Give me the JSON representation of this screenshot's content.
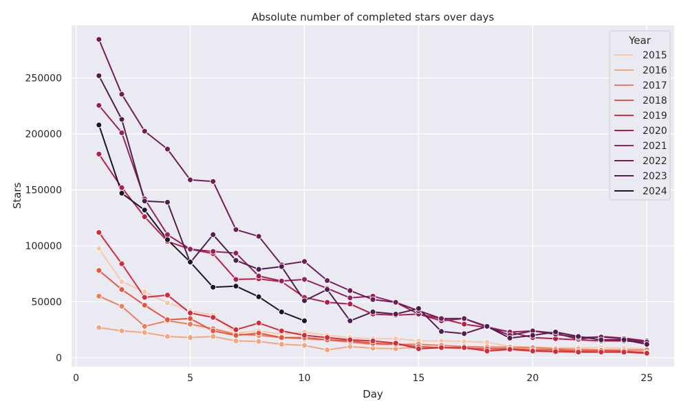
{
  "chart_data": {
    "type": "line",
    "title": "Absolute number of completed stars over days",
    "xlabel": "Day",
    "ylabel": "Stars",
    "xlim": [
      -0.2,
      26.2
    ],
    "ylim": [
      -8000,
      297000
    ],
    "xticks": [
      0,
      5,
      10,
      15,
      20,
      25
    ],
    "yticks": [
      0,
      50000,
      100000,
      150000,
      200000,
      250000
    ],
    "grid": true,
    "legend": {
      "title": "Year",
      "position": "top-right"
    },
    "series": [
      {
        "name": "2015",
        "color": "#f9c8a6",
        "x": [
          1,
          2,
          3,
          4,
          5,
          6,
          7,
          8,
          9,
          10,
          11,
          12,
          13,
          14,
          15,
          16,
          17,
          18,
          19,
          20,
          21,
          22,
          23,
          24,
          25
        ],
        "values": [
          97500,
          68000,
          59000,
          49000,
          42000,
          38000,
          22000,
          24000,
          21000,
          23000,
          20000,
          18000,
          17000,
          17000,
          15000,
          15000,
          14500,
          14000,
          10000,
          9500,
          9000,
          9000,
          9000,
          8500,
          8000
        ]
      },
      {
        "name": "2016",
        "color": "#f5a57e",
        "x": [
          1,
          2,
          3,
          4,
          5,
          6,
          7,
          8,
          9,
          10,
          11,
          12,
          13,
          14,
          15,
          16,
          17,
          18,
          19,
          20,
          21,
          22,
          23,
          24,
          25
        ],
        "values": [
          27000,
          24000,
          22500,
          19000,
          18000,
          19000,
          15000,
          14500,
          12000,
          11000,
          7000,
          10000,
          8500,
          8000,
          10000,
          9000,
          8000,
          7500,
          8000,
          7500,
          7000,
          6000,
          5500,
          5500,
          5000
        ]
      },
      {
        "name": "2017",
        "color": "#ef7d5c",
        "x": [
          1,
          2,
          3,
          4,
          5,
          6,
          7,
          8,
          9,
          10,
          11,
          12,
          13,
          14,
          15,
          16,
          17,
          18,
          19,
          20,
          21,
          22,
          23,
          24,
          25
        ],
        "values": [
          55000,
          46000,
          28000,
          33000,
          30000,
          26000,
          21000,
          20000,
          18000,
          17000,
          16000,
          14000,
          12000,
          12000,
          12000,
          11000,
          10000,
          9500,
          9500,
          9000,
          8000,
          7500,
          7000,
          7000,
          7000
        ]
      },
      {
        "name": "2018",
        "color": "#e8553f",
        "x": [
          1,
          2,
          3,
          4,
          5,
          6,
          7,
          8,
          9,
          10,
          11,
          12,
          13,
          14,
          15,
          16,
          17,
          18,
          19,
          20,
          21,
          22,
          23,
          24,
          25
        ],
        "values": [
          78000,
          61000,
          47000,
          34000,
          35000,
          24000,
          20000,
          22000,
          18000,
          18000,
          16000,
          15000,
          13000,
          12000,
          10000,
          9000,
          8500,
          8000,
          8000,
          7000,
          7000,
          6000,
          6500,
          6000,
          4500
        ]
      },
      {
        "name": "2019",
        "color": "#d52a3b",
        "x": [
          1,
          2,
          3,
          4,
          5,
          6,
          7,
          8,
          9,
          10,
          11,
          12,
          13,
          14,
          15,
          16,
          17,
          18,
          19,
          20,
          21,
          22,
          23,
          24,
          25
        ],
        "values": [
          112000,
          84000,
          54000,
          56000,
          40000,
          36000,
          25000,
          31000,
          24000,
          20000,
          18000,
          16000,
          15000,
          13000,
          8000,
          9000,
          9000,
          6000,
          7500,
          6000,
          5500,
          5000,
          5000,
          5000,
          4000
        ]
      },
      {
        "name": "2020",
        "color": "#b71d47",
        "x": [
          1,
          2,
          3,
          4,
          5,
          6,
          7,
          8,
          9,
          10,
          11,
          12,
          13,
          14,
          15,
          16,
          17,
          18,
          19,
          20,
          21,
          22,
          23,
          24,
          25
        ],
        "values": [
          182000,
          152000,
          126000,
          104000,
          97000,
          93000,
          70000,
          70500,
          68000,
          54000,
          49500,
          48000,
          39000,
          38000,
          39000,
          35000,
          30000,
          27000,
          23000,
          18000,
          17000,
          16000,
          15000,
          15000,
          14000
        ]
      },
      {
        "name": "2021",
        "color": "#981f59",
        "x": [
          1,
          2,
          3,
          4,
          5,
          6,
          7,
          8,
          9,
          10,
          11,
          12,
          13,
          14,
          15,
          16,
          17,
          18,
          19,
          20,
          21,
          22,
          23,
          24,
          25
        ],
        "values": [
          225500,
          201000,
          142000,
          110000,
          97000,
          95000,
          93500,
          73000,
          68500,
          70000,
          62000,
          53500,
          55000,
          49500,
          39000,
          33000,
          35000,
          27500,
          23000,
          24000,
          22000,
          16500,
          19000,
          17500,
          15000
        ]
      },
      {
        "name": "2022",
        "color": "#721b56",
        "x": [
          1,
          2,
          3,
          4,
          5,
          6,
          7,
          8,
          9,
          10,
          11,
          12,
          13,
          14,
          15,
          16,
          17,
          18,
          19,
          20,
          21,
          22,
          23,
          24,
          25
        ],
        "values": [
          284500,
          235500,
          202500,
          186500,
          159000,
          157500,
          114500,
          108500,
          83000,
          86000,
          69000,
          60000,
          52000,
          49500,
          42000,
          35000,
          35000,
          28000,
          20000,
          24000,
          21000,
          18000,
          18500,
          17000,
          14000
        ]
      },
      {
        "name": "2023",
        "color": "#4f1e4c",
        "x": [
          1,
          2,
          3,
          4,
          5,
          6,
          7,
          8,
          9,
          10,
          11,
          12,
          13,
          14,
          15,
          16,
          17,
          18,
          19,
          20,
          21,
          22,
          23,
          24,
          25
        ],
        "values": [
          252000,
          213000,
          140000,
          139000,
          85000,
          110000,
          87000,
          79000,
          81500,
          51000,
          61000,
          33000,
          41000,
          39000,
          44000,
          23500,
          21500,
          28000,
          17500,
          20000,
          23000,
          19000,
          16000,
          16000,
          12000
        ]
      },
      {
        "name": "2024",
        "color": "#1e1428",
        "x": [
          1,
          2,
          3,
          4,
          5,
          6,
          7,
          8,
          9,
          10
        ],
        "values": [
          208000,
          147000,
          132000,
          105500,
          85500,
          63000,
          64000,
          54500,
          41000,
          33000
        ]
      }
    ]
  }
}
